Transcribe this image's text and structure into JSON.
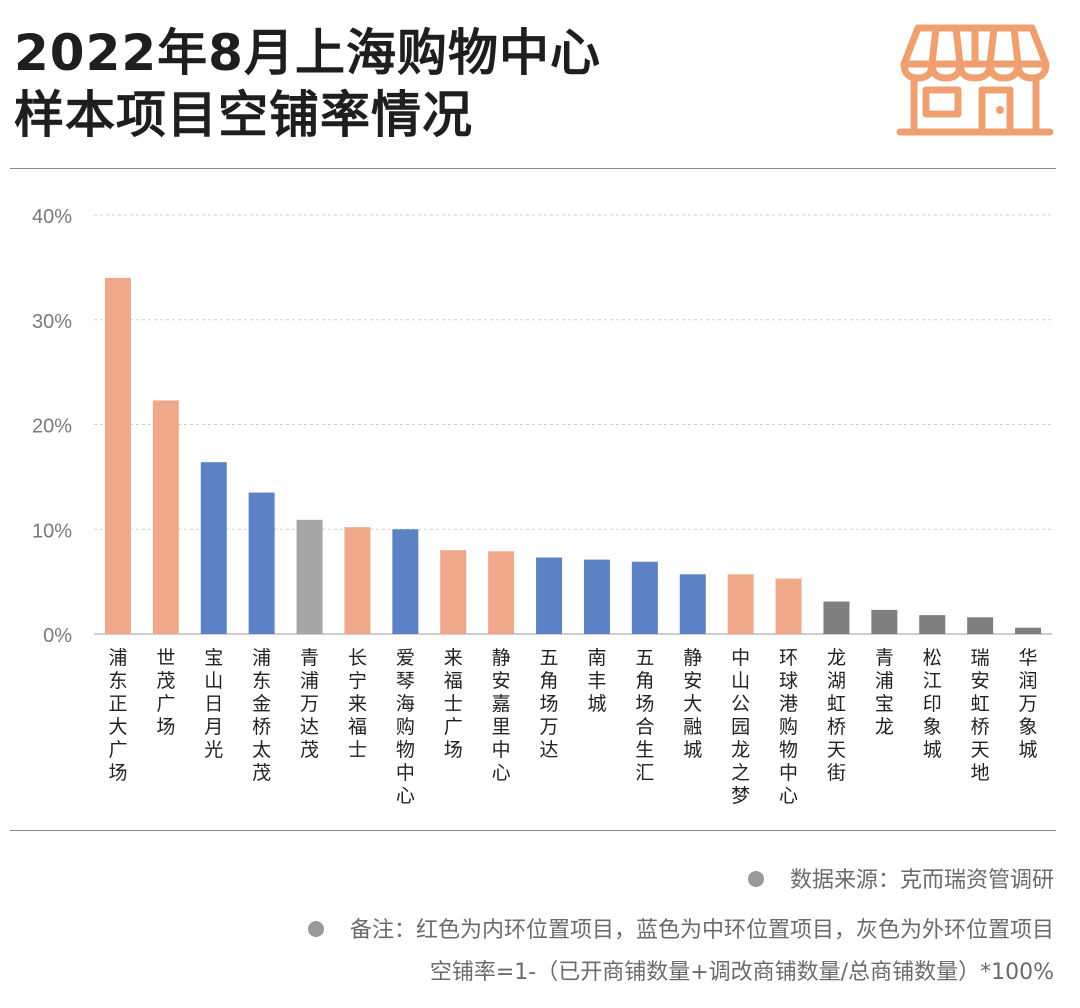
{
  "title": {
    "line1": "2022年8月上海购物中心",
    "line2": "样本项目空铺率情况"
  },
  "icons": {
    "header": "storefront-icon"
  },
  "colors": {
    "inner_ring": "#F0A88A",
    "middle_ring": "#5B82C4",
    "outer_ring": "#A6A6A6",
    "outer_ring_dark": "#7F7F7F",
    "store_icon": "#F0A070"
  },
  "chart_data": {
    "type": "bar",
    "yticks": [
      "0%",
      "10%",
      "20%",
      "30%",
      "40%"
    ],
    "ylim": [
      0,
      40
    ],
    "grid": true,
    "categories": [
      "浦东正大广场",
      "世茂广场",
      "宝山日月光",
      "浦东金桥太茂",
      "青浦万达茂",
      "长宁来福士",
      "爱琴海购物中心",
      "来福士广场",
      "静安嘉里中心",
      "五角场万达",
      "南丰城",
      "五角场合生汇",
      "静安大融城",
      "中山公园龙之梦",
      "环球港购物中心",
      "龙湖虹桥天街",
      "青浦宝龙",
      "松江印象城",
      "瑞安虹桥天地",
      "华润万象城"
    ],
    "values": [
      34.0,
      22.3,
      16.4,
      13.5,
      10.9,
      10.2,
      10.0,
      8.0,
      7.9,
      7.3,
      7.1,
      6.9,
      5.7,
      5.7,
      5.3,
      3.1,
      2.3,
      1.8,
      1.6,
      0.6
    ],
    "colors": [
      "#F0A88A",
      "#F0A88A",
      "#5B82C4",
      "#5B82C4",
      "#A6A6A6",
      "#F0A88A",
      "#5B82C4",
      "#F0A88A",
      "#F0A88A",
      "#5B82C4",
      "#5B82C4",
      "#5B82C4",
      "#5B82C4",
      "#F0A88A",
      "#F0A88A",
      "#7F7F7F",
      "#7F7F7F",
      "#7F7F7F",
      "#7F7F7F",
      "#7F7F7F"
    ]
  },
  "footer": {
    "source": "数据来源：克而瑞资管调研",
    "note1": "备注：红色为内环位置项目，蓝色为中环位置项目，灰色为外环位置项目",
    "note2": "空铺率=1-（已开商铺数量+调改商铺数量/总商铺数量）*100%"
  }
}
